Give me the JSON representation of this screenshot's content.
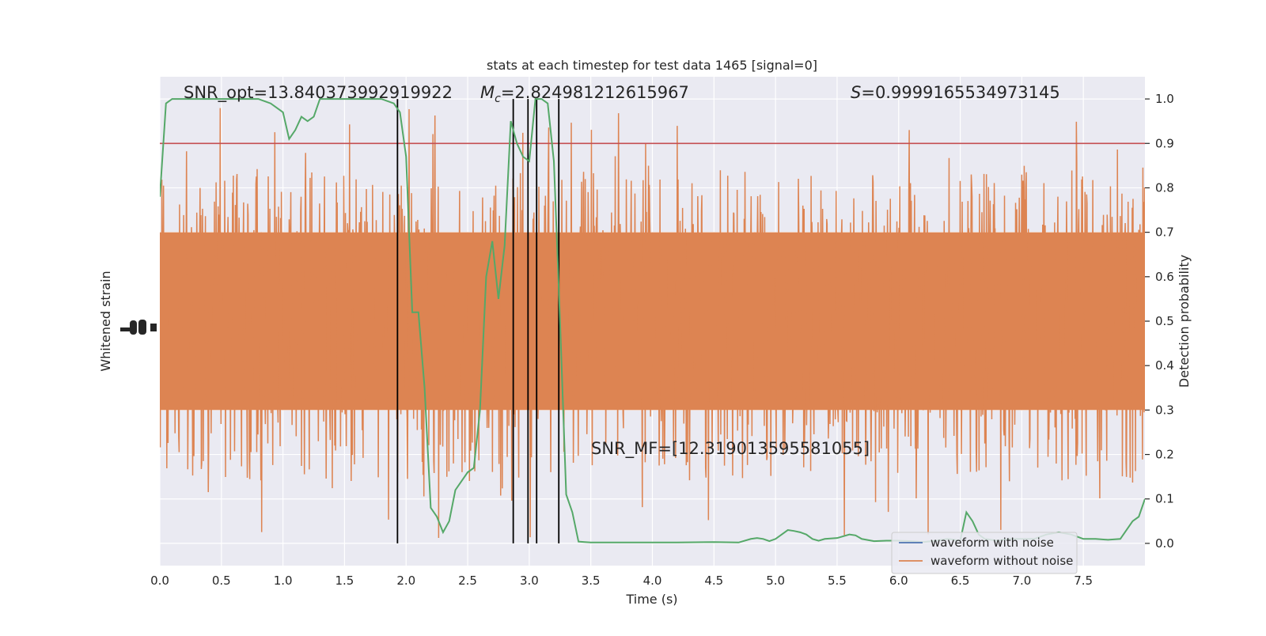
{
  "chart_data": {
    "type": "line",
    "title": "stats at each timestep for test data 1465 [signal=0]",
    "xlabel": "Time (s)",
    "ylabel_left": "Whitened strain",
    "ylabel_right": "Detection probability",
    "xlim": [
      0.0,
      8.0
    ],
    "ylim_right": [
      -0.05,
      1.05
    ],
    "x_ticks": [
      0.0,
      0.5,
      1.0,
      1.5,
      2.0,
      2.5,
      3.0,
      3.5,
      4.0,
      4.5,
      5.0,
      5.5,
      6.0,
      6.5,
      7.0,
      7.5
    ],
    "x_tick_labels": [
      "0.0",
      "0.5",
      "1.0",
      "1.5",
      "2.0",
      "2.5",
      "3.0",
      "3.5",
      "4.0",
      "4.5",
      "5.0",
      "5.5",
      "6.0",
      "6.5",
      "7.0",
      "7.5"
    ],
    "y_right_ticks": [
      0.0,
      0.1,
      0.2,
      0.3,
      0.4,
      0.5,
      0.6,
      0.7,
      0.8,
      0.9,
      1.0
    ],
    "y_right_tick_labels": [
      "0.0",
      "0.1",
      "0.2",
      "0.3",
      "0.4",
      "0.5",
      "0.6",
      "0.7",
      "0.8",
      "0.9",
      "1.0"
    ],
    "grid": true,
    "legend_placement": "lower-right",
    "threshold": 0.9,
    "vertical_markers": [
      1.93,
      2.87,
      2.99,
      3.06,
      3.24
    ],
    "annotations": {
      "snr_opt": "SNR_opt=13.840373992919922",
      "mc_symbol": "M",
      "mc_subscript": "c",
      "mc_value": "=2.824981212615967",
      "s_symbol": "S",
      "s_value": "=0.9999165534973145",
      "snr_mf": "SNR_MF=[12.319013595581055]"
    },
    "series": [
      {
        "name": "waveform with noise",
        "color": "#4c72b0",
        "values": []
      },
      {
        "name": "waveform without noise",
        "color": "#dd8452",
        "amplitude_band": [
          0.3,
          0.7
        ],
        "spike_range": [
          0.0,
          0.98
        ]
      },
      {
        "color": "#55a868",
        "x": [
          0.0,
          0.05,
          0.1,
          0.2,
          0.3,
          0.4,
          0.5,
          0.6,
          0.7,
          0.8,
          0.9,
          0.95,
          1.0,
          1.05,
          1.1,
          1.15,
          1.2,
          1.25,
          1.3,
          1.35,
          1.4,
          1.5,
          1.6,
          1.7,
          1.8,
          1.9,
          1.95,
          2.0,
          2.05,
          2.1,
          2.15,
          2.2,
          2.25,
          2.3,
          2.35,
          2.4,
          2.5,
          2.55,
          2.6,
          2.65,
          2.7,
          2.75,
          2.8,
          2.85,
          2.9,
          2.95,
          3.0,
          3.05,
          3.1,
          3.15,
          3.2,
          3.25,
          3.3,
          3.35,
          3.4,
          3.45,
          3.5,
          3.6,
          3.8,
          4.0,
          4.2,
          4.5,
          4.7,
          4.8,
          4.85,
          4.9,
          4.95,
          5.0,
          5.05,
          5.1,
          5.15,
          5.2,
          5.25,
          5.3,
          5.35,
          5.4,
          5.5,
          5.6,
          5.65,
          5.7,
          5.8,
          5.9,
          6.0,
          6.1,
          6.2,
          6.3,
          6.4,
          6.5,
          6.55,
          6.6,
          6.65,
          6.7,
          6.8,
          6.9,
          7.0,
          7.1,
          7.2,
          7.3,
          7.4,
          7.45,
          7.5,
          7.6,
          7.7,
          7.8,
          7.85,
          7.9,
          7.95,
          8.0
        ],
        "values": [
          0.78,
          0.99,
          1.0,
          1.0,
          1.0,
          1.0,
          1.0,
          1.0,
          1.0,
          1.0,
          0.99,
          0.98,
          0.97,
          0.91,
          0.93,
          0.96,
          0.95,
          0.96,
          1.0,
          1.0,
          1.0,
          1.0,
          1.0,
          1.0,
          1.0,
          0.99,
          0.97,
          0.87,
          0.52,
          0.52,
          0.35,
          0.08,
          0.06,
          0.025,
          0.05,
          0.12,
          0.16,
          0.17,
          0.3,
          0.6,
          0.68,
          0.55,
          0.67,
          0.95,
          0.9,
          0.87,
          0.86,
          1.0,
          1.0,
          0.99,
          0.86,
          0.5,
          0.11,
          0.07,
          0.004,
          0.003,
          0.002,
          0.002,
          0.002,
          0.002,
          0.002,
          0.003,
          0.002,
          0.01,
          0.012,
          0.01,
          0.005,
          0.01,
          0.02,
          0.03,
          0.028,
          0.025,
          0.02,
          0.01,
          0.006,
          0.01,
          0.012,
          0.02,
          0.018,
          0.01,
          0.005,
          0.006,
          0.006,
          0.005,
          0.003,
          0.006,
          0.01,
          0.006,
          0.07,
          0.05,
          0.02,
          0.01,
          0.006,
          0.01,
          0.01,
          0.01,
          0.02,
          0.025,
          0.02,
          0.015,
          0.01,
          0.01,
          0.008,
          0.01,
          0.03,
          0.05,
          0.06,
          0.1
        ]
      }
    ]
  }
}
